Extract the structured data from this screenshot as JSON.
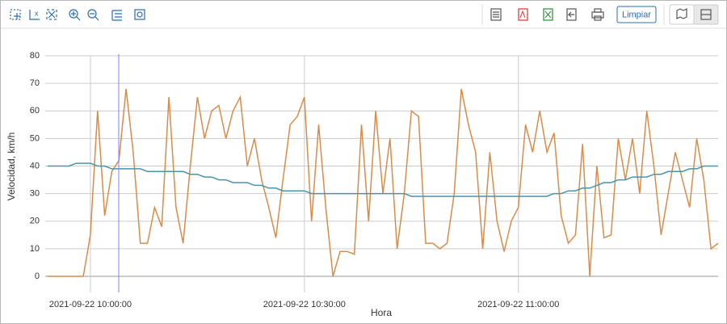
{
  "toolbar": {
    "clear_button": "Limpiar"
  },
  "chart_data": {
    "type": "line",
    "x_label": "Hora",
    "y_label": "Velocidad, km/h",
    "x": [
      "2021-09-22 09:54:00",
      "2021-09-22 09:55:00",
      "2021-09-22 09:56:00",
      "2021-09-22 09:57:00",
      "2021-09-22 09:58:00",
      "2021-09-22 09:59:00",
      "2021-09-22 10:00:00",
      "2021-09-22 10:01:00",
      "2021-09-22 10:02:00",
      "2021-09-22 10:03:00",
      "2021-09-22 10:04:00",
      "2021-09-22 10:05:00",
      "2021-09-22 10:06:00",
      "2021-09-22 10:07:00",
      "2021-09-22 10:08:00",
      "2021-09-22 10:09:00",
      "2021-09-22 10:10:00",
      "2021-09-22 10:11:00",
      "2021-09-22 10:12:00",
      "2021-09-22 10:13:00",
      "2021-09-22 10:14:00",
      "2021-09-22 10:15:00",
      "2021-09-22 10:16:00",
      "2021-09-22 10:17:00",
      "2021-09-22 10:18:00",
      "2021-09-22 10:19:00",
      "2021-09-22 10:20:00",
      "2021-09-22 10:21:00",
      "2021-09-22 10:22:00",
      "2021-09-22 10:23:00",
      "2021-09-22 10:24:00",
      "2021-09-22 10:25:00",
      "2021-09-22 10:26:00",
      "2021-09-22 10:27:00",
      "2021-09-22 10:28:00",
      "2021-09-22 10:29:00",
      "2021-09-22 10:30:00",
      "2021-09-22 10:31:00",
      "2021-09-22 10:32:00",
      "2021-09-22 10:33:00",
      "2021-09-22 10:34:00",
      "2021-09-22 10:35:00",
      "2021-09-22 10:36:00",
      "2021-09-22 10:37:00",
      "2021-09-22 10:38:00",
      "2021-09-22 10:39:00",
      "2021-09-22 10:40:00",
      "2021-09-22 10:41:00",
      "2021-09-22 10:42:00",
      "2021-09-22 10:43:00",
      "2021-09-22 10:44:00",
      "2021-09-22 10:45:00",
      "2021-09-22 10:46:00",
      "2021-09-22 10:47:00",
      "2021-09-22 10:48:00",
      "2021-09-22 10:49:00",
      "2021-09-22 10:50:00",
      "2021-09-22 10:51:00",
      "2021-09-22 10:52:00",
      "2021-09-22 10:53:00",
      "2021-09-22 10:54:00",
      "2021-09-22 10:55:00",
      "2021-09-22 10:56:00",
      "2021-09-22 10:57:00",
      "2021-09-22 10:58:00",
      "2021-09-22 10:59:00",
      "2021-09-22 11:00:00",
      "2021-09-22 11:01:00",
      "2021-09-22 11:02:00",
      "2021-09-22 11:03:00",
      "2021-09-22 11:04:00",
      "2021-09-22 11:05:00",
      "2021-09-22 11:06:00",
      "2021-09-22 11:07:00",
      "2021-09-22 11:08:00",
      "2021-09-22 11:09:00",
      "2021-09-22 11:10:00",
      "2021-09-22 11:11:00",
      "2021-09-22 11:12:00",
      "2021-09-22 11:13:00",
      "2021-09-22 11:14:00",
      "2021-09-22 11:15:00",
      "2021-09-22 11:16:00",
      "2021-09-22 11:17:00",
      "2021-09-22 11:18:00",
      "2021-09-22 11:19:00",
      "2021-09-22 11:20:00",
      "2021-09-22 11:21:00",
      "2021-09-22 11:22:00",
      "2021-09-22 11:23:00",
      "2021-09-22 11:24:00",
      "2021-09-22 11:25:00",
      "2021-09-22 11:26:00",
      "2021-09-22 11:27:00",
      "2021-09-22 11:28:00"
    ],
    "series": [
      {
        "color": "#d98c4a",
        "values": [
          0,
          0,
          0,
          0,
          0,
          0,
          15,
          60,
          22,
          38,
          42,
          68,
          45,
          12,
          12,
          25,
          18,
          65,
          25,
          12,
          40,
          65,
          50,
          60,
          62,
          50,
          60,
          65,
          40,
          50,
          35,
          25,
          14,
          35,
          55,
          58,
          65,
          20,
          55,
          25,
          0,
          9,
          9,
          8,
          55,
          20,
          60,
          30,
          50,
          10,
          30,
          60,
          58,
          12,
          12,
          10,
          12,
          30,
          68,
          55,
          45,
          10,
          45,
          20,
          9,
          20,
          25,
          55,
          45,
          60,
          45,
          52,
          22,
          12,
          15,
          48,
          0,
          40,
          14,
          15,
          50,
          35,
          50,
          30,
          60,
          40,
          15,
          30,
          45,
          35,
          25,
          50,
          35,
          10,
          12
        ]
      },
      {
        "color": "#4a94a8",
        "values": [
          40,
          40,
          40,
          40,
          41,
          41,
          41,
          40,
          40,
          39,
          39,
          39,
          39,
          39,
          38,
          38,
          38,
          38,
          38,
          38,
          37,
          37,
          36,
          36,
          35,
          35,
          34,
          34,
          34,
          33,
          33,
          32,
          32,
          31,
          31,
          31,
          31,
          30,
          30,
          30,
          30,
          30,
          30,
          30,
          30,
          30,
          30,
          30,
          30,
          30,
          30,
          29,
          29,
          29,
          29,
          29,
          29,
          29,
          29,
          29,
          29,
          29,
          29,
          29,
          29,
          29,
          29,
          29,
          29,
          29,
          29,
          30,
          30,
          31,
          31,
          32,
          32,
          33,
          34,
          34,
          35,
          35,
          36,
          36,
          36,
          37,
          37,
          38,
          38,
          38,
          39,
          39,
          40,
          40,
          40
        ]
      }
    ],
    "xlim": [
      "2021-09-22 09:53:40",
      "2021-09-22 11:28:00"
    ],
    "xticks": [
      "2021-09-22 10:00:00",
      "2021-09-22 10:30:00",
      "2021-09-22 11:00:00"
    ],
    "ylim": [
      0,
      80
    ],
    "yticks": [
      0,
      10,
      20,
      30,
      40,
      50,
      60,
      70,
      80
    ],
    "grid": true
  }
}
